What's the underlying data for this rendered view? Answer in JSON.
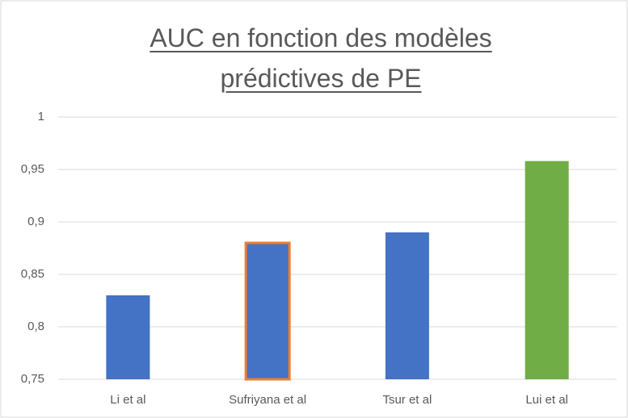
{
  "chart_data": {
    "type": "bar",
    "title": "AUC en fonction des modèles prédictives de PE",
    "categories": [
      "Li et al",
      "Sufriyana et al",
      "Tsur et al",
      "Lui et al"
    ],
    "values": [
      0.83,
      0.88,
      0.89,
      0.958
    ],
    "colors": [
      "#4472c4",
      "#4472c4",
      "#4472c4",
      "#70ad47"
    ],
    "edge_colors": [
      null,
      "#ed7d31",
      null,
      null
    ],
    "ylim": [
      0.75,
      1
    ],
    "yticks": [
      {
        "value": 0.75,
        "label": "0,75"
      },
      {
        "value": 0.8,
        "label": "0,8"
      },
      {
        "value": 0.85,
        "label": "0,85"
      },
      {
        "value": 0.9,
        "label": "0,9"
      },
      {
        "value": 0.95,
        "label": "0,95"
      },
      1
    ],
    "grid": true
  }
}
